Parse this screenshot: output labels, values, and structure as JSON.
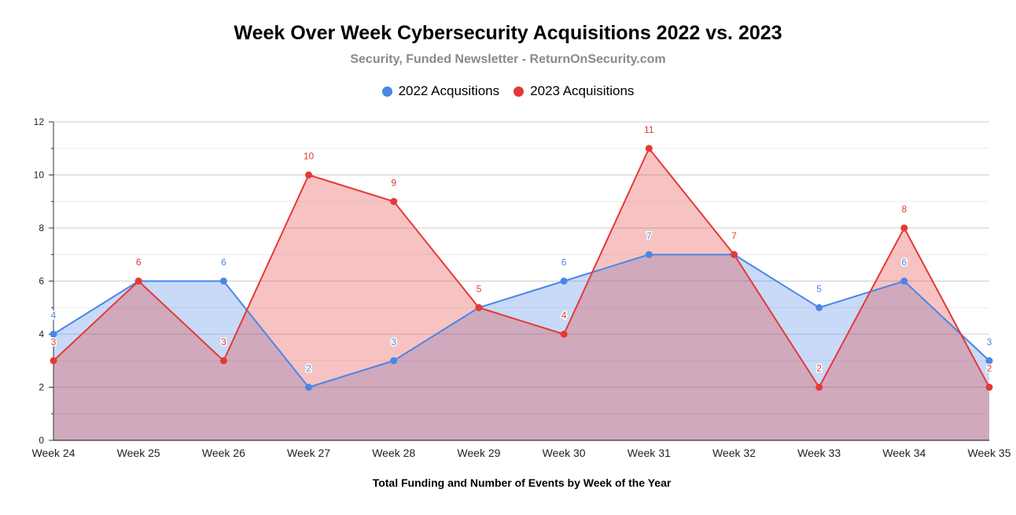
{
  "chart_data": {
    "type": "area",
    "title": "Week Over Week Cybersecurity Acquisitions 2022 vs. 2023",
    "subtitle": "Security, Funded Newsletter - ReturnOnSecurity.com",
    "xlabel": "Total Funding and Number of Events by Week of the Year",
    "ylabel": "",
    "ylim": [
      0,
      12
    ],
    "yticks": [
      "0",
      "2",
      "4",
      "6",
      "8",
      "10",
      "12"
    ],
    "grid": true,
    "legend_position": "top",
    "categories": [
      "Week 24",
      "Week 25",
      "Week 26",
      "Week 27",
      "Week 28",
      "Week 29",
      "Week 30",
      "Week 31",
      "Week 32",
      "Week 33",
      "Week 34",
      "Week 35"
    ],
    "series": [
      {
        "name": "2022 Acqusitions",
        "color": "#4a86e8",
        "values": [
          4,
          6,
          6,
          2,
          3,
          5,
          6,
          7,
          7,
          5,
          6,
          3
        ]
      },
      {
        "name": "2023 Acquisitions",
        "color": "#e53935",
        "values": [
          3,
          6,
          3,
          10,
          9,
          5,
          4,
          11,
          7,
          2,
          8,
          2
        ]
      }
    ]
  }
}
